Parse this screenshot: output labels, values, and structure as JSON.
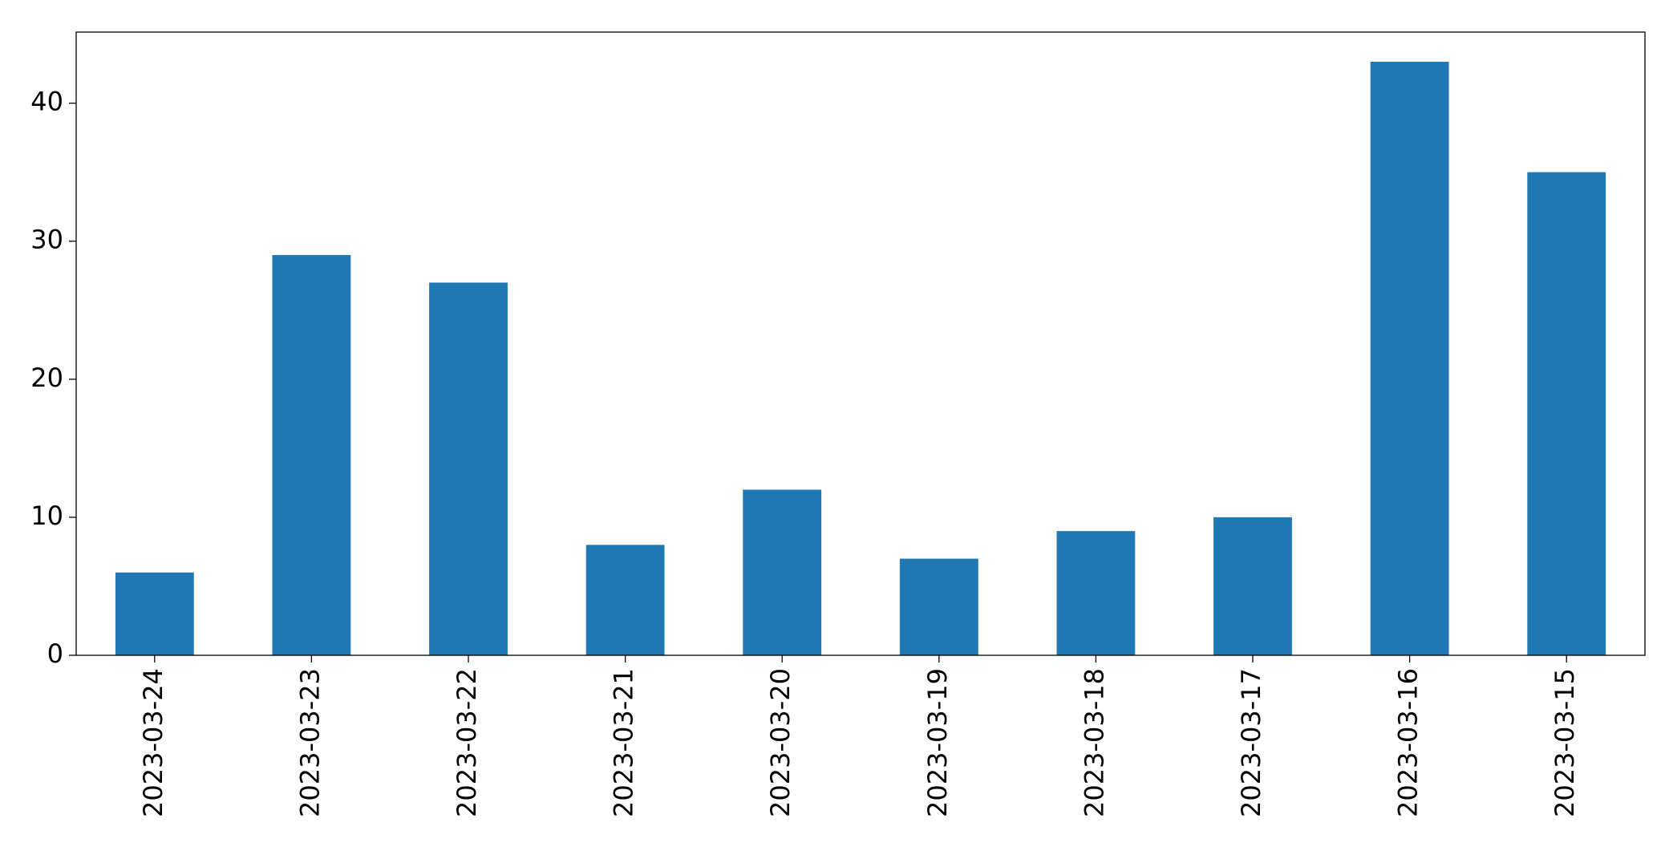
{
  "chart_data": {
    "type": "bar",
    "categories": [
      "2023-03-24",
      "2023-03-23",
      "2023-03-22",
      "2023-03-21",
      "2023-03-20",
      "2023-03-19",
      "2023-03-18",
      "2023-03-17",
      "2023-03-16",
      "2023-03-15"
    ],
    "values": [
      6,
      29,
      27,
      8,
      12,
      7,
      9,
      10,
      43,
      35
    ],
    "color": "#1f77b4",
    "ylim": [
      0,
      45.15
    ],
    "yticks": [
      0,
      10,
      20,
      30,
      40
    ],
    "grid": false
  }
}
